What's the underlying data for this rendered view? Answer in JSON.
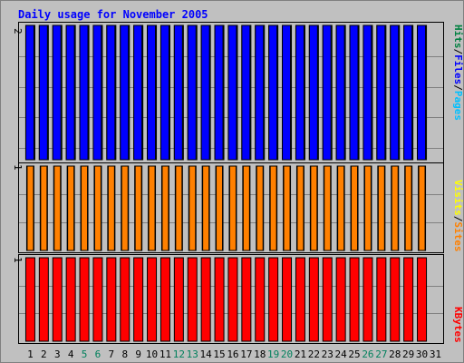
{
  "chart_data": [
    {
      "panel": "top",
      "type": "bar",
      "title": "Daily usage for November 2005",
      "categories": [
        "1",
        "2",
        "3",
        "4",
        "5",
        "6",
        "7",
        "8",
        "9",
        "10",
        "11",
        "12",
        "13",
        "14",
        "15",
        "16",
        "17",
        "18",
        "19",
        "20",
        "21",
        "22",
        "23",
        "24",
        "25",
        "26",
        "27",
        "28",
        "29",
        "30",
        "31"
      ],
      "weekend_days": [
        "5",
        "6",
        "12",
        "13",
        "19",
        "20",
        "26",
        "27"
      ],
      "series": [
        {
          "name": "Hits",
          "color": "#008040",
          "values": [
            2,
            2,
            2,
            2,
            2,
            2,
            2,
            2,
            2,
            2,
            2,
            2,
            2,
            2,
            2,
            2,
            2,
            2,
            2,
            2,
            2,
            2,
            2,
            2,
            2,
            2,
            2,
            2,
            2,
            2,
            0
          ]
        },
        {
          "name": "Files",
          "color": "#0000ff",
          "values": [
            2,
            2,
            2,
            2,
            2,
            2,
            2,
            2,
            2,
            2,
            2,
            2,
            2,
            2,
            2,
            2,
            2,
            2,
            2,
            2,
            2,
            2,
            2,
            2,
            2,
            2,
            2,
            2,
            2,
            2,
            0
          ]
        },
        {
          "name": "Pages",
          "color": "#00c0ff",
          "values": [
            0,
            0,
            0,
            0,
            0,
            0,
            0,
            0,
            0,
            0,
            0,
            0,
            0,
            0,
            0,
            0,
            0,
            0,
            0,
            0,
            0,
            0,
            0,
            0,
            0,
            0,
            0,
            0,
            0,
            0,
            0
          ]
        }
      ],
      "ymax_label": "2",
      "ylim": [
        0,
        2
      ]
    },
    {
      "panel": "middle",
      "type": "bar",
      "categories": [
        "1",
        "2",
        "3",
        "4",
        "5",
        "6",
        "7",
        "8",
        "9",
        "10",
        "11",
        "12",
        "13",
        "14",
        "15",
        "16",
        "17",
        "18",
        "19",
        "20",
        "21",
        "22",
        "23",
        "24",
        "25",
        "26",
        "27",
        "28",
        "29",
        "30",
        "31"
      ],
      "series": [
        {
          "name": "Visits",
          "color": "#ffff00",
          "values": [
            1,
            1,
            1,
            1,
            1,
            1,
            1,
            1,
            1,
            1,
            1,
            1,
            1,
            1,
            1,
            1,
            1,
            1,
            1,
            1,
            1,
            1,
            1,
            1,
            1,
            1,
            1,
            1,
            1,
            1,
            0
          ]
        },
        {
          "name": "Sites",
          "color": "#ff8000",
          "values": [
            1,
            1,
            1,
            1,
            1,
            1,
            1,
            1,
            1,
            1,
            1,
            1,
            1,
            1,
            1,
            1,
            1,
            1,
            1,
            1,
            1,
            1,
            1,
            1,
            1,
            1,
            1,
            1,
            1,
            1,
            0
          ]
        }
      ],
      "ymax_label": "1",
      "ylim": [
        0,
        1
      ]
    },
    {
      "panel": "bottom",
      "type": "bar",
      "categories": [
        "1",
        "2",
        "3",
        "4",
        "5",
        "6",
        "7",
        "8",
        "9",
        "10",
        "11",
        "12",
        "13",
        "14",
        "15",
        "16",
        "17",
        "18",
        "19",
        "20",
        "21",
        "22",
        "23",
        "24",
        "25",
        "26",
        "27",
        "28",
        "29",
        "30",
        "31"
      ],
      "series": [
        {
          "name": "KBytes",
          "color": "#ff0000",
          "values": [
            1,
            1,
            1,
            1,
            1,
            1,
            1,
            1,
            1,
            1,
            1,
            1,
            1,
            1,
            1,
            1,
            1,
            1,
            1,
            1,
            1,
            1,
            1,
            1,
            1,
            1,
            1,
            1,
            1,
            1,
            0
          ]
        }
      ],
      "ymax_label": "1",
      "ylim": [
        0,
        1
      ]
    }
  ],
  "colors": {
    "background": "#c0c0c0",
    "title": "#0000ff",
    "weekday_label": "#000000",
    "weekend_label": "#00805c"
  }
}
